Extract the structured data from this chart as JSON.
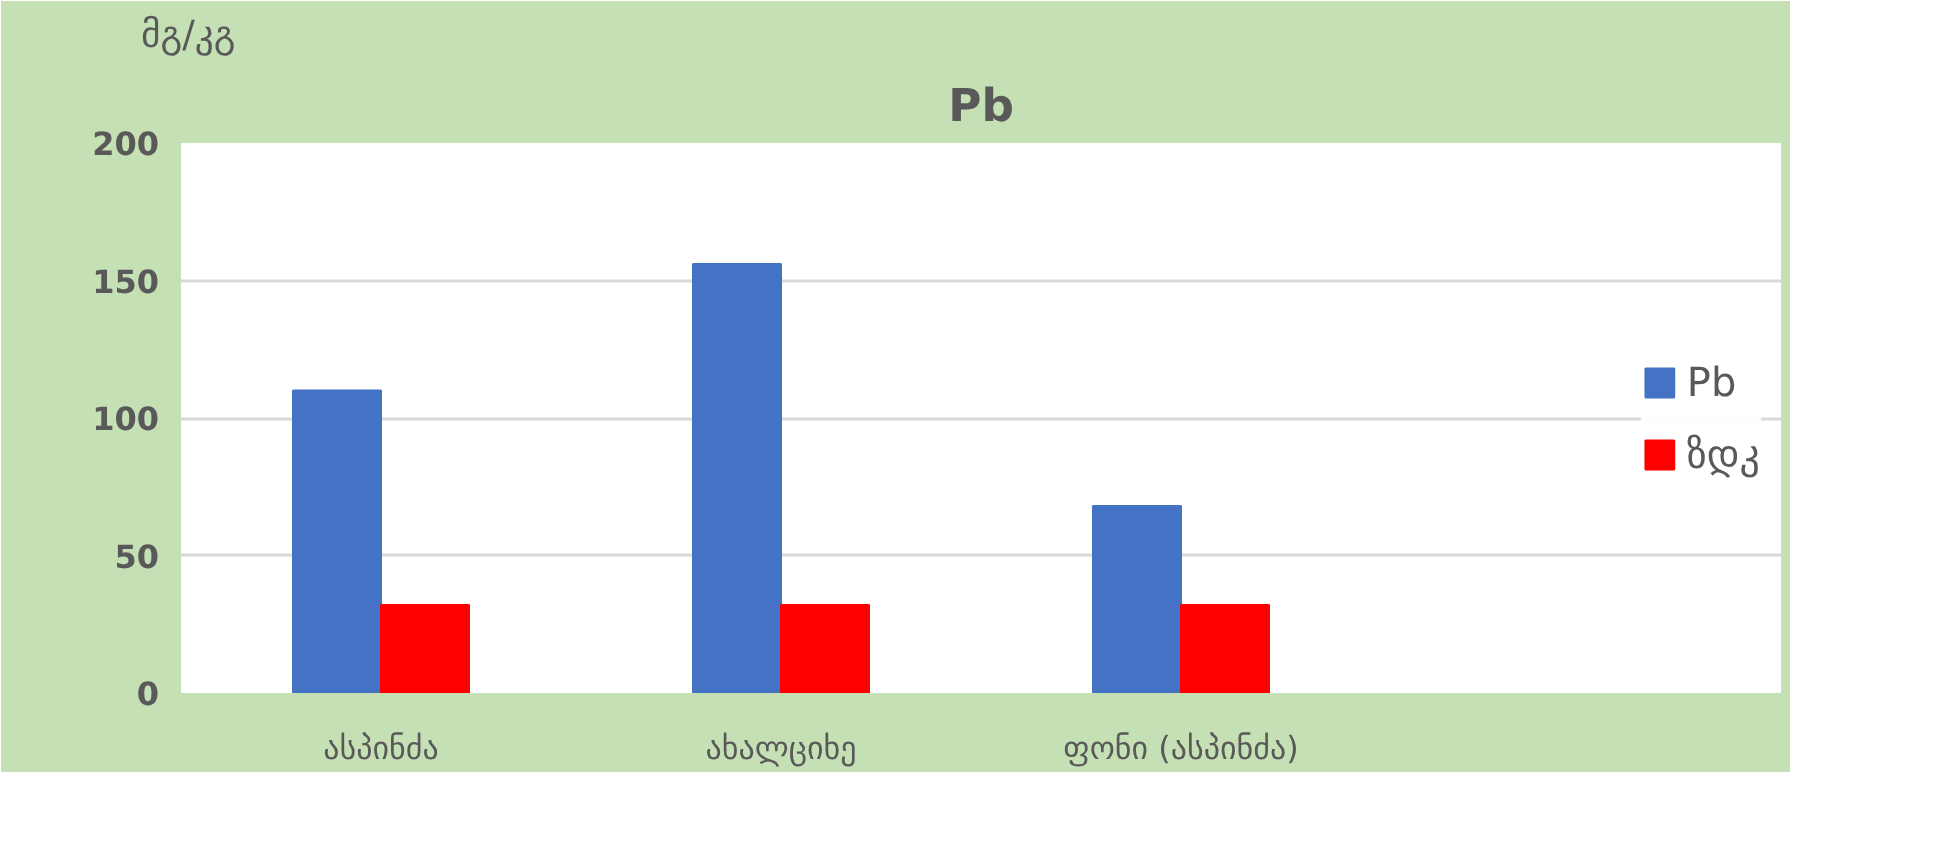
{
  "chart_data": {
    "type": "bar",
    "title": "Pb",
    "ylabel": "მგ/კგ",
    "categories": [
      "ასპინძა",
      "ახალციხე",
      "ფონი (ასპინძა)",
      null
    ],
    "series": [
      {
        "name": "Pb",
        "color": "#4472c4",
        "values": [
          110,
          156,
          68,
          null
        ]
      },
      {
        "name": "ზდკ",
        "color": "#ff0000",
        "values": [
          32,
          32,
          32,
          null
        ]
      }
    ],
    "ylim": [
      0,
      200
    ],
    "yticks": [
      0,
      50,
      100,
      150,
      200
    ],
    "grid": "y",
    "legend": "right"
  }
}
